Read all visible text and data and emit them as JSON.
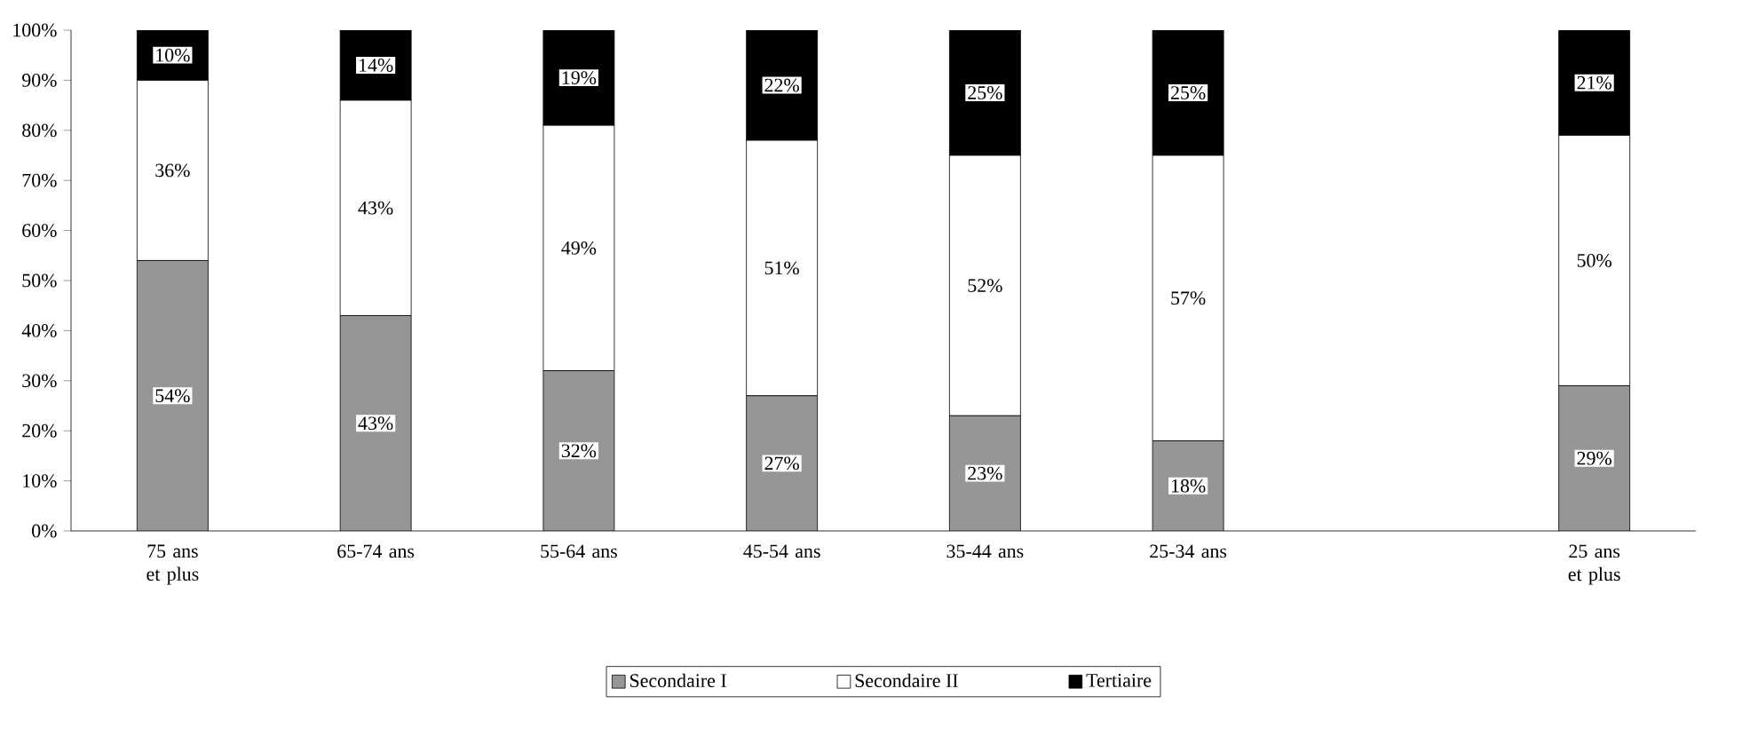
{
  "chart_data": {
    "type": "bar",
    "stacked": true,
    "categories": [
      "75 ans et plus",
      "65-74 ans",
      "55-64 ans",
      "45-54 ans",
      "35-44 ans",
      "25-34 ans",
      null,
      "25 ans et plus"
    ],
    "series": [
      {
        "name": "Secondaire I",
        "color": "#969696",
        "values": [
          54,
          43,
          32,
          27,
          23,
          18,
          null,
          29
        ],
        "value_labels": [
          "54%",
          "43%",
          "32%",
          "27%",
          "23%",
          "18%",
          null,
          "29%"
        ]
      },
      {
        "name": "Secondaire II",
        "color": "#ffffff",
        "values": [
          36,
          43,
          49,
          51,
          52,
          57,
          null,
          50
        ],
        "value_labels": [
          "36%",
          "43%",
          "49%",
          "51%",
          "52%",
          "57%",
          null,
          "50%"
        ]
      },
      {
        "name": "Tertiaire",
        "color": "#000000",
        "values": [
          10,
          14,
          19,
          22,
          25,
          25,
          null,
          21
        ],
        "value_labels": [
          "10%",
          "14%",
          "19%",
          "22%",
          "25%",
          "25%",
          null,
          "21%"
        ]
      }
    ],
    "ylim": [
      0,
      100
    ],
    "yticks": [
      {
        "value": 0,
        "label": "0%"
      },
      {
        "value": 10,
        "label": "10%"
      },
      {
        "value": 20,
        "label": "20%"
      },
      {
        "value": 30,
        "label": "30%"
      },
      {
        "value": 40,
        "label": "40%"
      },
      {
        "value": 50,
        "label": "50%"
      },
      {
        "value": 60,
        "label": "60%"
      },
      {
        "value": 70,
        "label": "70%"
      },
      {
        "value": 80,
        "label": "80%"
      },
      {
        "value": 90,
        "label": "90%"
      },
      {
        "value": 100,
        "label": "100%"
      }
    ],
    "grid": false,
    "legend": "bottom"
  }
}
